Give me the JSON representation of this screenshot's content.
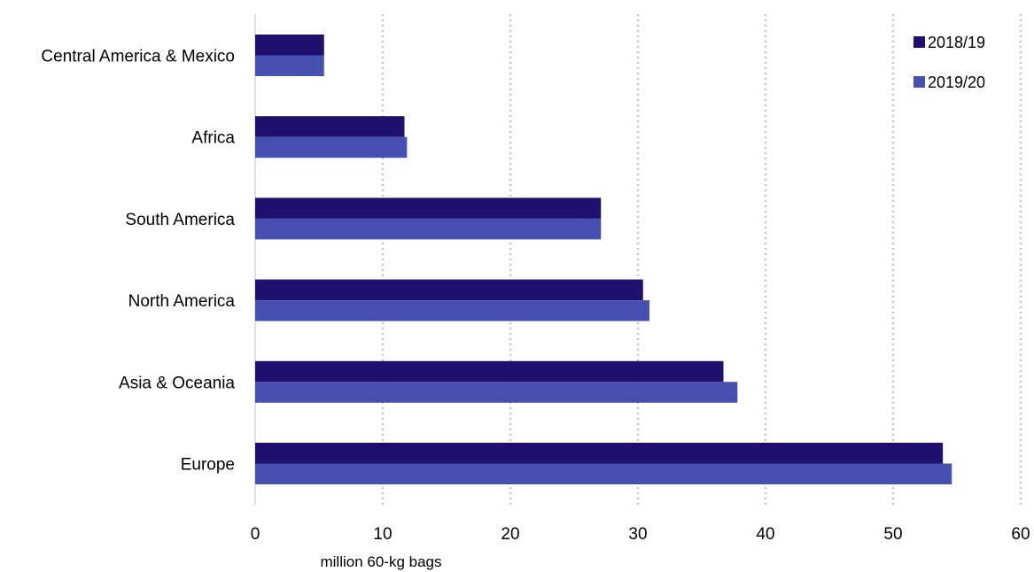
{
  "chart_data": {
    "type": "bar",
    "orientation": "horizontal",
    "categories": [
      "Central America & Mexico",
      "Africa",
      "South America",
      "North America",
      "Asia & Oceania",
      "Europe"
    ],
    "series": [
      {
        "name": "2018/19",
        "color": "#1f0f6e",
        "values": [
          5.4,
          11.7,
          27.1,
          30.4,
          36.7,
          53.9
        ]
      },
      {
        "name": "2019/20",
        "color": "#4650b0",
        "values": [
          5.4,
          11.9,
          27.1,
          30.9,
          37.8,
          54.6
        ]
      }
    ],
    "xlabel": "million 60-kg bags",
    "ylabel": "",
    "title": "",
    "xlim": [
      0,
      60
    ],
    "xticks": [
      0,
      10,
      20,
      30,
      40,
      50,
      60
    ],
    "grid": "vertical dotted",
    "legend_position": "top-right",
    "category_order": "top-to-bottom"
  }
}
